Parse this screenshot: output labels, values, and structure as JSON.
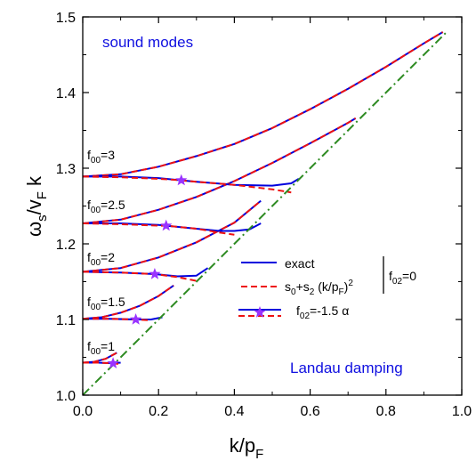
{
  "chart_data": {
    "type": "line",
    "title": "",
    "xlabel": "k/p",
    "xlabel_sub": "F",
    "ylabel": "ω",
    "ylabel_parts": {
      "omega": "ω",
      "s": "s",
      "slash_v": "/v",
      "F": "F",
      "k": " k"
    },
    "xlim": [
      0.0,
      1.0
    ],
    "ylim": [
      1.0,
      1.5
    ],
    "x_ticks": [
      "0.0",
      "0.2",
      "0.4",
      "0.6",
      "0.8",
      "1.0"
    ],
    "y_ticks": [
      "1.0",
      "1.1",
      "1.2",
      "1.3",
      "1.4",
      "1.5"
    ],
    "grid": false,
    "colors": {
      "exact": "#0000dd",
      "approx": "#ee1111",
      "boundary": "#2e8b22",
      "star": "#9933ff",
      "annotation": "#1010e0"
    },
    "annotations": {
      "sound_modes": "sound modes",
      "landau_damping": "Landau damping"
    },
    "curve_labels": [
      {
        "prefix": "f",
        "sub": "00",
        "suffix": "=3"
      },
      {
        "prefix": "f",
        "sub": "00",
        "suffix": "=2.5"
      },
      {
        "prefix": "f",
        "sub": "00",
        "suffix": "=2"
      },
      {
        "prefix": "f",
        "sub": "00",
        "suffix": "=1.5"
      },
      {
        "prefix": "f",
        "sub": "00",
        "suffix": "=1"
      }
    ],
    "legend": {
      "position": "center-right",
      "exact": "exact",
      "approx_parts": {
        "s0": "s",
        "s0_sub": "0",
        "plus": "+s",
        "s2_sub": "2",
        "paren": " (k/p",
        "F_sub": "F",
        "close": ")",
        "sq": "2"
      },
      "f02_zero": {
        "prefix": "f",
        "sub": "02",
        "suffix": "=0"
      },
      "f02_neg": {
        "prefix": "f",
        "sub": "02",
        "suffix": "=-1.5 α"
      }
    },
    "series": [
      {
        "group": "f02=0",
        "f00": 3,
        "s0": 1.289,
        "exact": {
          "x": [
            0,
            0.1,
            0.2,
            0.3,
            0.4,
            0.5,
            0.6,
            0.7,
            0.8,
            0.9,
            0.95
          ],
          "y": [
            1.289,
            1.292,
            1.302,
            1.316,
            1.332,
            1.353,
            1.378,
            1.405,
            1.434,
            1.465,
            1.48
          ]
        },
        "approx": {
          "x": [
            0,
            0.1,
            0.2,
            0.3,
            0.4,
            0.5,
            0.6,
            0.7,
            0.8,
            0.9,
            0.95
          ],
          "y": [
            1.289,
            1.292,
            1.302,
            1.316,
            1.332,
            1.353,
            1.378,
            1.405,
            1.434,
            1.465,
            1.48
          ]
        }
      },
      {
        "group": "f02=0",
        "f00": 2.5,
        "s0": 1.227,
        "exact": {
          "x": [
            0,
            0.1,
            0.2,
            0.3,
            0.4,
            0.5,
            0.6,
            0.7,
            0.72
          ],
          "y": [
            1.227,
            1.232,
            1.245,
            1.262,
            1.283,
            1.307,
            1.333,
            1.36,
            1.366
          ]
        },
        "approx": {
          "x": [
            0,
            0.1,
            0.2,
            0.3,
            0.4,
            0.5,
            0.6,
            0.7,
            0.72
          ],
          "y": [
            1.227,
            1.232,
            1.245,
            1.262,
            1.283,
            1.307,
            1.333,
            1.36,
            1.366
          ]
        }
      },
      {
        "group": "f02=0",
        "f00": 2,
        "s0": 1.163,
        "exact": {
          "x": [
            0,
            0.1,
            0.2,
            0.3,
            0.4,
            0.47
          ],
          "y": [
            1.163,
            1.168,
            1.182,
            1.202,
            1.228,
            1.257
          ]
        },
        "approx": {
          "x": [
            0,
            0.1,
            0.2,
            0.3,
            0.4,
            0.47
          ],
          "y": [
            1.163,
            1.168,
            1.182,
            1.202,
            1.228,
            1.257
          ]
        }
      },
      {
        "group": "f02=0",
        "f00": 1.5,
        "s0": 1.101,
        "exact": {
          "x": [
            0,
            0.05,
            0.1,
            0.15,
            0.2,
            0.24
          ],
          "y": [
            1.101,
            1.103,
            1.109,
            1.118,
            1.131,
            1.145
          ]
        },
        "approx": {
          "x": [
            0,
            0.05,
            0.1,
            0.15,
            0.2,
            0.24
          ],
          "y": [
            1.101,
            1.103,
            1.109,
            1.118,
            1.131,
            1.145
          ]
        }
      },
      {
        "group": "f02=0",
        "f00": 1,
        "s0": 1.043,
        "exact": {
          "x": [
            0,
            0.03,
            0.06,
            0.09
          ],
          "y": [
            1.043,
            1.044,
            1.048,
            1.056
          ]
        },
        "approx": {
          "x": [
            0,
            0.03,
            0.06,
            0.09
          ],
          "y": [
            1.043,
            1.044,
            1.048,
            1.056
          ]
        }
      },
      {
        "group": "f02=-1.5 α",
        "f00": 3,
        "star": {
          "x": 0.26,
          "y": 1.284
        },
        "exact": {
          "x": [
            0,
            0.1,
            0.2,
            0.26,
            0.3,
            0.4,
            0.5,
            0.55,
            0.57
          ],
          "y": [
            1.289,
            1.289,
            1.287,
            1.284,
            1.282,
            1.278,
            1.277,
            1.28,
            1.286
          ]
        },
        "approx": {
          "x": [
            0,
            0.1,
            0.2,
            0.26,
            0.3,
            0.4,
            0.5,
            0.55
          ],
          "y": [
            1.289,
            1.288,
            1.286,
            1.284,
            1.282,
            1.278,
            1.272,
            1.268
          ]
        }
      },
      {
        "group": "f02=-1.5 α",
        "f00": 2.5,
        "star": {
          "x": 0.22,
          "y": 1.224
        },
        "exact": {
          "x": [
            0,
            0.1,
            0.2,
            0.22,
            0.3,
            0.36,
            0.4,
            0.44,
            0.47
          ],
          "y": [
            1.227,
            1.227,
            1.225,
            1.224,
            1.22,
            1.217,
            1.217,
            1.219,
            1.227
          ]
        },
        "approx": {
          "x": [
            0,
            0.1,
            0.2,
            0.22,
            0.3,
            0.36,
            0.4
          ],
          "y": [
            1.227,
            1.226,
            1.224,
            1.224,
            1.22,
            1.215,
            1.212
          ]
        }
      },
      {
        "group": "f02=-1.5 α",
        "f00": 2,
        "star": {
          "x": 0.19,
          "y": 1.16
        },
        "exact": {
          "x": [
            0,
            0.1,
            0.19,
            0.25,
            0.3,
            0.33
          ],
          "y": [
            1.163,
            1.162,
            1.16,
            1.157,
            1.158,
            1.168
          ]
        },
        "approx": {
          "x": [
            0,
            0.1,
            0.19,
            0.25,
            0.3
          ],
          "y": [
            1.163,
            1.162,
            1.16,
            1.156,
            1.151
          ]
        }
      },
      {
        "group": "f02=-1.5 α",
        "f00": 1.5,
        "star": {
          "x": 0.14,
          "y": 1.1
        },
        "exact": {
          "x": [
            0,
            0.07,
            0.14,
            0.18,
            0.21
          ],
          "y": [
            1.101,
            1.101,
            1.1,
            1.1,
            1.103
          ]
        },
        "approx": {
          "x": [
            0,
            0.07,
            0.14,
            0.18
          ],
          "y": [
            1.101,
            1.101,
            1.1,
            1.099
          ]
        }
      },
      {
        "group": "f02=-1.5 α",
        "f00": 1,
        "star": {
          "x": 0.08,
          "y": 1.042
        },
        "exact": {
          "x": [
            0,
            0.04,
            0.08,
            0.1
          ],
          "y": [
            1.043,
            1.043,
            1.042,
            1.043
          ]
        },
        "approx": {
          "x": [
            0,
            0.04,
            0.08,
            0.1
          ],
          "y": [
            1.043,
            1.043,
            1.042,
            1.041
          ]
        }
      },
      {
        "group": "boundary",
        "style": "dash-dot",
        "x": [
          0,
          0.96
        ],
        "y": [
          1.0,
          1.48
        ]
      }
    ]
  }
}
